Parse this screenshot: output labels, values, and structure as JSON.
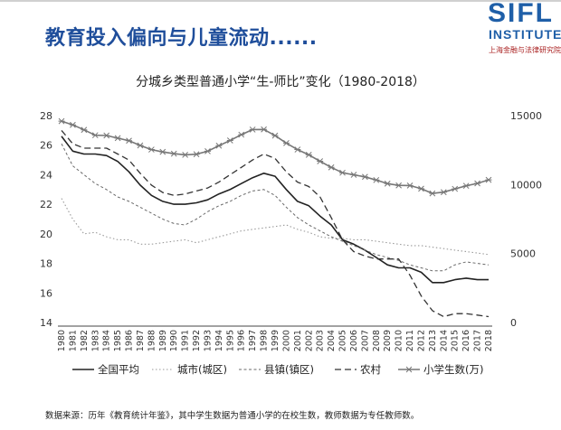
{
  "headline": "教育投入偏向与儿童流动......",
  "logo": {
    "main": "SIFL",
    "sub": "INSTITUTE",
    "cn": "上海金融与法律研究院"
  },
  "source_note": "数据来源：历年《教育统计年鉴》，其中学生数据为普通小学的在校生数，教师数据为专任教师数。",
  "colors": {
    "headline": "#1f4e9b",
    "logo": "#1f5fa8",
    "national": "#222222",
    "city": "#9a9a9a",
    "county": "#6a6a6a",
    "rural": "#333333",
    "students": "#777777"
  },
  "chart_data": {
    "type": "line",
    "title": "分城乡类型普通小学“生-师比”变化（1980-2018）",
    "x": [
      "1980",
      "1981",
      "1982",
      "1983",
      "1984",
      "1985",
      "1986",
      "1987",
      "1988",
      "1989",
      "1990",
      "1991",
      "1992",
      "1993",
      "1994",
      "1995",
      "1996",
      "1997",
      "1998",
      "1999",
      "2000",
      "2001",
      "2002",
      "2003",
      "2004",
      "2005",
      "2006",
      "2007",
      "2008",
      "2009",
      "2010",
      "2011",
      "2012",
      "2013",
      "2014",
      "2015",
      "2016",
      "2017",
      "2018"
    ],
    "y_left": {
      "min": 14,
      "max": 28,
      "ticks": [
        14,
        16,
        18,
        20,
        22,
        24,
        26,
        28
      ]
    },
    "y_right": {
      "min": 0,
      "max": 15000,
      "ticks": [
        0,
        5000,
        10000,
        15000
      ]
    },
    "grid": false,
    "legend_position": "bottom",
    "series": [
      {
        "name": "全国平均",
        "axis": "left",
        "style": "solid",
        "values": [
          26.6,
          25.6,
          25.4,
          25.4,
          25.3,
          24.9,
          24.2,
          23.3,
          22.6,
          22.2,
          22.0,
          22.0,
          22.1,
          22.3,
          22.7,
          23.0,
          23.4,
          23.8,
          24.1,
          23.9,
          23.0,
          22.2,
          21.9,
          21.2,
          20.6,
          19.6,
          19.3,
          18.9,
          18.4,
          17.9,
          17.7,
          17.7,
          17.4,
          16.7,
          16.7,
          16.9,
          17.0,
          16.9,
          16.9
        ]
      },
      {
        "name": "城市(城区)",
        "axis": "left",
        "style": "dotted",
        "values": [
          22.4,
          21.0,
          20.0,
          20.1,
          19.8,
          19.6,
          19.6,
          19.3,
          19.3,
          19.4,
          19.5,
          19.6,
          19.4,
          19.6,
          19.8,
          20.0,
          20.2,
          20.3,
          20.4,
          20.5,
          20.6,
          20.3,
          20.1,
          19.8,
          19.7,
          19.7,
          19.6,
          19.6,
          19.5,
          19.4,
          19.3,
          19.2,
          19.2,
          19.1,
          19.0,
          18.9,
          18.8,
          18.7,
          18.6
        ]
      },
      {
        "name": "县镇(镇区)",
        "axis": "left",
        "style": "dashed-fine",
        "values": [
          26.1,
          24.6,
          24.0,
          23.4,
          23.0,
          22.5,
          22.2,
          21.8,
          21.4,
          21.0,
          20.7,
          20.6,
          21.0,
          21.5,
          21.9,
          22.2,
          22.6,
          22.9,
          23.0,
          22.6,
          21.8,
          21.1,
          20.6,
          20.2,
          19.8,
          19.5,
          19.2,
          18.9,
          18.6,
          18.4,
          18.2,
          17.9,
          17.7,
          17.5,
          17.5,
          17.9,
          18.1,
          18.0,
          17.9
        ]
      },
      {
        "name": "农村",
        "axis": "left",
        "style": "dashed",
        "values": [
          27.0,
          26.1,
          25.8,
          25.8,
          25.8,
          25.4,
          25.0,
          24.1,
          23.3,
          22.8,
          22.6,
          22.7,
          22.9,
          23.1,
          23.5,
          24.0,
          24.5,
          25.0,
          25.4,
          25.1,
          24.2,
          23.5,
          23.2,
          22.5,
          21.1,
          19.6,
          18.8,
          18.5,
          18.3,
          18.3,
          18.3,
          17.2,
          15.8,
          14.8,
          14.4,
          14.6,
          14.6,
          14.5,
          14.4
        ]
      },
      {
        "name": "小学生数(万)",
        "axis": "right",
        "style": "star",
        "values": [
          14600,
          14330,
          13970,
          13580,
          13560,
          13370,
          13180,
          12840,
          12540,
          12370,
          12240,
          12160,
          12200,
          12420,
          12820,
          13200,
          13620,
          13990,
          14000,
          13550,
          13010,
          12540,
          12160,
          11690,
          11250,
          10860,
          10710,
          10560,
          10330,
          10070,
          9940,
          9930,
          9700,
          9360,
          9450,
          9690,
          9910,
          10090,
          10340
        ]
      }
    ]
  }
}
